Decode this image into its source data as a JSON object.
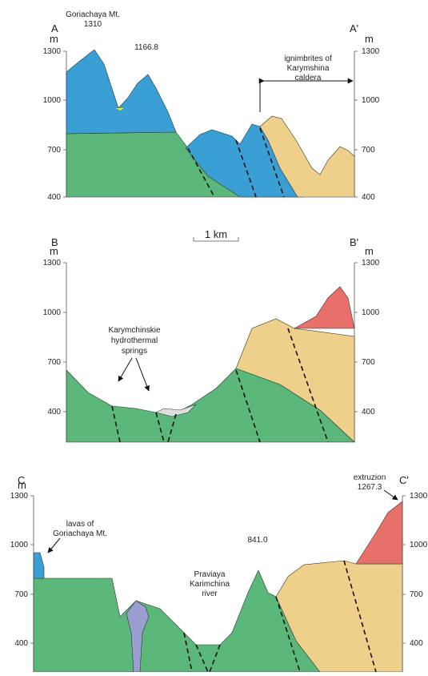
{
  "scale_bar": "1 km",
  "sections": [
    {
      "left_label": "A",
      "right_label": "A'",
      "unit": "m",
      "ticks": [
        "1300",
        "1000",
        "700",
        "400"
      ],
      "peak_name": "Goriachaya Mt.",
      "peak_elevation": "1310",
      "second_peak": "1166.8",
      "note": [
        "ignimbrites of",
        "Karymshina",
        "caldera"
      ]
    },
    {
      "left_label": "B",
      "right_label": "B'",
      "unit": "m",
      "ticks": [
        "1300",
        "1000",
        "700",
        "400"
      ],
      "note": [
        "Karymchinskie",
        "hydrothermal",
        "springs"
      ]
    },
    {
      "left_label": "C",
      "right_label": "C'",
      "unit": "m",
      "ticks": [
        "1300",
        "1000",
        "700",
        "400"
      ],
      "lavas_note": [
        "lavas of",
        "Goriachaya Mt."
      ],
      "river_note": [
        "Praviaya",
        "Karimchina",
        "river"
      ],
      "peak_elevation": "841.0",
      "extrusion_note": [
        "extruzion",
        "1267.3"
      ]
    }
  ]
}
